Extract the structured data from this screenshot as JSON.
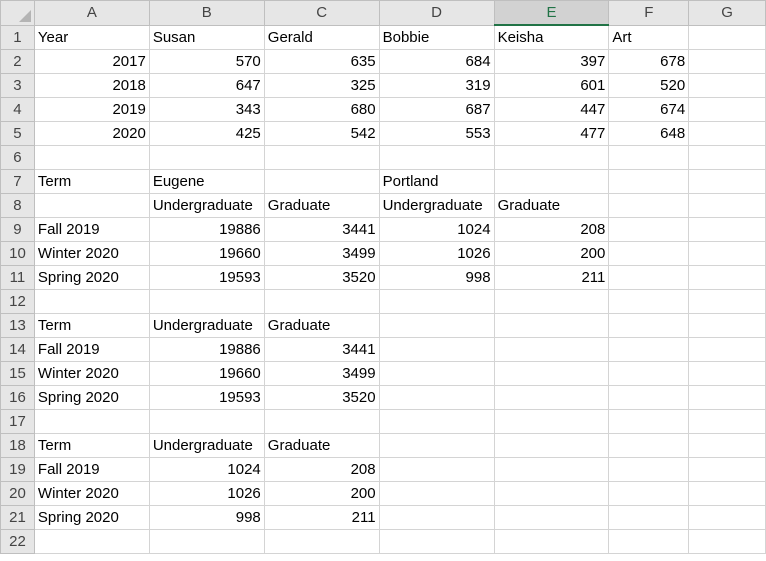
{
  "columns": [
    "A",
    "B",
    "C",
    "D",
    "E",
    "F",
    "G"
  ],
  "selected_column": "E",
  "rows": [
    {
      "n": "1",
      "cells": [
        {
          "v": "Year",
          "t": "txt"
        },
        {
          "v": "Susan",
          "t": "txt"
        },
        {
          "v": "Gerald",
          "t": "txt"
        },
        {
          "v": "Bobbie",
          "t": "txt"
        },
        {
          "v": "Keisha",
          "t": "txt"
        },
        {
          "v": "Art",
          "t": "txt"
        },
        {
          "v": "",
          "t": "txt"
        }
      ]
    },
    {
      "n": "2",
      "cells": [
        {
          "v": "2017",
          "t": "num"
        },
        {
          "v": "570",
          "t": "num"
        },
        {
          "v": "635",
          "t": "num"
        },
        {
          "v": "684",
          "t": "num"
        },
        {
          "v": "397",
          "t": "num"
        },
        {
          "v": "678",
          "t": "num"
        },
        {
          "v": "",
          "t": "txt"
        }
      ]
    },
    {
      "n": "3",
      "cells": [
        {
          "v": "2018",
          "t": "num"
        },
        {
          "v": "647",
          "t": "num"
        },
        {
          "v": "325",
          "t": "num"
        },
        {
          "v": "319",
          "t": "num"
        },
        {
          "v": "601",
          "t": "num"
        },
        {
          "v": "520",
          "t": "num"
        },
        {
          "v": "",
          "t": "txt"
        }
      ]
    },
    {
      "n": "4",
      "cells": [
        {
          "v": "2019",
          "t": "num"
        },
        {
          "v": "343",
          "t": "num"
        },
        {
          "v": "680",
          "t": "num"
        },
        {
          "v": "687",
          "t": "num"
        },
        {
          "v": "447",
          "t": "num"
        },
        {
          "v": "674",
          "t": "num"
        },
        {
          "v": "",
          "t": "txt"
        }
      ]
    },
    {
      "n": "5",
      "cells": [
        {
          "v": "2020",
          "t": "num"
        },
        {
          "v": "425",
          "t": "num"
        },
        {
          "v": "542",
          "t": "num"
        },
        {
          "v": "553",
          "t": "num"
        },
        {
          "v": "477",
          "t": "num"
        },
        {
          "v": "648",
          "t": "num"
        },
        {
          "v": "",
          "t": "txt"
        }
      ]
    },
    {
      "n": "6",
      "cells": [
        {
          "v": "",
          "t": "txt"
        },
        {
          "v": "",
          "t": "txt"
        },
        {
          "v": "",
          "t": "txt"
        },
        {
          "v": "",
          "t": "txt"
        },
        {
          "v": "",
          "t": "txt"
        },
        {
          "v": "",
          "t": "txt"
        },
        {
          "v": "",
          "t": "txt"
        }
      ]
    },
    {
      "n": "7",
      "cells": [
        {
          "v": "Term",
          "t": "txt"
        },
        {
          "v": "Eugene",
          "t": "txt"
        },
        {
          "v": "",
          "t": "txt"
        },
        {
          "v": "Portland",
          "t": "txt"
        },
        {
          "v": "",
          "t": "txt"
        },
        {
          "v": "",
          "t": "txt"
        },
        {
          "v": "",
          "t": "txt"
        }
      ]
    },
    {
      "n": "8",
      "cells": [
        {
          "v": "",
          "t": "txt"
        },
        {
          "v": "Undergraduate",
          "t": "txt"
        },
        {
          "v": "Graduate",
          "t": "txt"
        },
        {
          "v": "Undergraduate",
          "t": "txt"
        },
        {
          "v": "Graduate",
          "t": "txt"
        },
        {
          "v": "",
          "t": "txt"
        },
        {
          "v": "",
          "t": "txt"
        }
      ]
    },
    {
      "n": "9",
      "cells": [
        {
          "v": "Fall 2019",
          "t": "txt"
        },
        {
          "v": "19886",
          "t": "num"
        },
        {
          "v": "3441",
          "t": "num"
        },
        {
          "v": "1024",
          "t": "num"
        },
        {
          "v": "208",
          "t": "num"
        },
        {
          "v": "",
          "t": "txt"
        },
        {
          "v": "",
          "t": "txt"
        }
      ]
    },
    {
      "n": "10",
      "cells": [
        {
          "v": "Winter 2020",
          "t": "txt"
        },
        {
          "v": "19660",
          "t": "num"
        },
        {
          "v": "3499",
          "t": "num"
        },
        {
          "v": "1026",
          "t": "num"
        },
        {
          "v": "200",
          "t": "num"
        },
        {
          "v": "",
          "t": "txt"
        },
        {
          "v": "",
          "t": "txt"
        }
      ]
    },
    {
      "n": "11",
      "cells": [
        {
          "v": "Spring 2020",
          "t": "txt"
        },
        {
          "v": "19593",
          "t": "num"
        },
        {
          "v": "3520",
          "t": "num"
        },
        {
          "v": "998",
          "t": "num"
        },
        {
          "v": "211",
          "t": "num"
        },
        {
          "v": "",
          "t": "txt"
        },
        {
          "v": "",
          "t": "txt"
        }
      ]
    },
    {
      "n": "12",
      "cells": [
        {
          "v": "",
          "t": "txt"
        },
        {
          "v": "",
          "t": "txt"
        },
        {
          "v": "",
          "t": "txt"
        },
        {
          "v": "",
          "t": "txt"
        },
        {
          "v": "",
          "t": "txt"
        },
        {
          "v": "",
          "t": "txt"
        },
        {
          "v": "",
          "t": "txt"
        }
      ]
    },
    {
      "n": "13",
      "cells": [
        {
          "v": "Term",
          "t": "txt"
        },
        {
          "v": "Undergraduate",
          "t": "txt"
        },
        {
          "v": "Graduate",
          "t": "txt"
        },
        {
          "v": "",
          "t": "txt"
        },
        {
          "v": "",
          "t": "txt"
        },
        {
          "v": "",
          "t": "txt"
        },
        {
          "v": "",
          "t": "txt"
        }
      ]
    },
    {
      "n": "14",
      "cells": [
        {
          "v": "Fall 2019",
          "t": "txt"
        },
        {
          "v": "19886",
          "t": "num"
        },
        {
          "v": "3441",
          "t": "num"
        },
        {
          "v": "",
          "t": "txt"
        },
        {
          "v": "",
          "t": "txt"
        },
        {
          "v": "",
          "t": "txt"
        },
        {
          "v": "",
          "t": "txt"
        }
      ]
    },
    {
      "n": "15",
      "cells": [
        {
          "v": "Winter 2020",
          "t": "txt"
        },
        {
          "v": "19660",
          "t": "num"
        },
        {
          "v": "3499",
          "t": "num"
        },
        {
          "v": "",
          "t": "txt"
        },
        {
          "v": "",
          "t": "txt"
        },
        {
          "v": "",
          "t": "txt"
        },
        {
          "v": "",
          "t": "txt"
        }
      ]
    },
    {
      "n": "16",
      "cells": [
        {
          "v": "Spring 2020",
          "t": "txt"
        },
        {
          "v": "19593",
          "t": "num"
        },
        {
          "v": "3520",
          "t": "num"
        },
        {
          "v": "",
          "t": "txt"
        },
        {
          "v": "",
          "t": "txt"
        },
        {
          "v": "",
          "t": "txt"
        },
        {
          "v": "",
          "t": "txt"
        }
      ]
    },
    {
      "n": "17",
      "cells": [
        {
          "v": "",
          "t": "txt"
        },
        {
          "v": "",
          "t": "txt"
        },
        {
          "v": "",
          "t": "txt"
        },
        {
          "v": "",
          "t": "txt"
        },
        {
          "v": "",
          "t": "txt"
        },
        {
          "v": "",
          "t": "txt"
        },
        {
          "v": "",
          "t": "txt"
        }
      ]
    },
    {
      "n": "18",
      "cells": [
        {
          "v": "Term",
          "t": "txt"
        },
        {
          "v": "Undergraduate",
          "t": "txt"
        },
        {
          "v": "Graduate",
          "t": "txt"
        },
        {
          "v": "",
          "t": "txt"
        },
        {
          "v": "",
          "t": "txt"
        },
        {
          "v": "",
          "t": "txt"
        },
        {
          "v": "",
          "t": "txt"
        }
      ]
    },
    {
      "n": "19",
      "cells": [
        {
          "v": "Fall 2019",
          "t": "txt"
        },
        {
          "v": "1024",
          "t": "num"
        },
        {
          "v": "208",
          "t": "num"
        },
        {
          "v": "",
          "t": "txt"
        },
        {
          "v": "",
          "t": "txt"
        },
        {
          "v": "",
          "t": "txt"
        },
        {
          "v": "",
          "t": "txt"
        }
      ]
    },
    {
      "n": "20",
      "cells": [
        {
          "v": "Winter 2020",
          "t": "txt"
        },
        {
          "v": "1026",
          "t": "num"
        },
        {
          "v": "200",
          "t": "num"
        },
        {
          "v": "",
          "t": "txt"
        },
        {
          "v": "",
          "t": "txt"
        },
        {
          "v": "",
          "t": "txt"
        },
        {
          "v": "",
          "t": "txt"
        }
      ]
    },
    {
      "n": "21",
      "cells": [
        {
          "v": "Spring 2020",
          "t": "txt"
        },
        {
          "v": "998",
          "t": "num"
        },
        {
          "v": "211",
          "t": "num"
        },
        {
          "v": "",
          "t": "txt"
        },
        {
          "v": "",
          "t": "txt"
        },
        {
          "v": "",
          "t": "txt"
        },
        {
          "v": "",
          "t": "txt"
        }
      ]
    },
    {
      "n": "22",
      "cells": [
        {
          "v": "",
          "t": "txt"
        },
        {
          "v": "",
          "t": "txt"
        },
        {
          "v": "",
          "t": "txt"
        },
        {
          "v": "",
          "t": "txt"
        },
        {
          "v": "",
          "t": "txt"
        },
        {
          "v": "",
          "t": "txt"
        },
        {
          "v": "",
          "t": "txt"
        }
      ]
    }
  ],
  "colors": {
    "selected_header_text": "#217346",
    "gridline": "#d4d4d4",
    "header_bg": "#e6e6e6"
  }
}
